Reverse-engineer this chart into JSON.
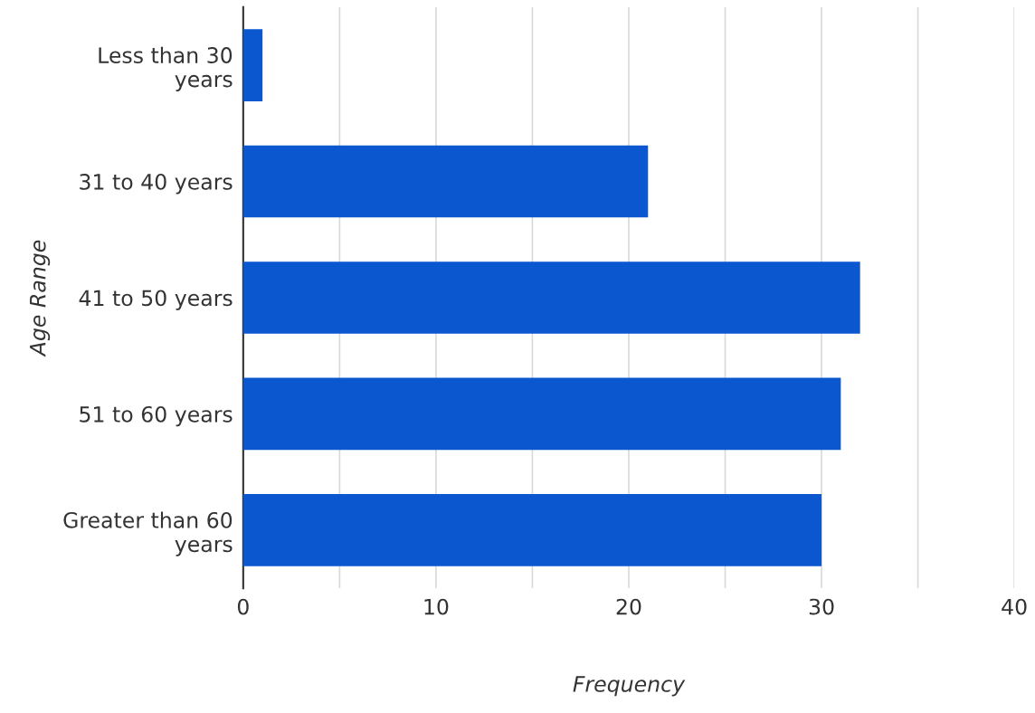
{
  "chart_data": {
    "type": "bar",
    "orientation": "horizontal",
    "xlabel": "Frequency",
    "ylabel": "Age Range",
    "categories": [
      "Less than 30\nyears",
      "31 to 40 years",
      "41 to 50 years",
      "51 to 60 years",
      "Greater than 60\nyears"
    ],
    "values": [
      1,
      21,
      32,
      31,
      30
    ],
    "color": "#0b57d0",
    "xlim": [
      0,
      40
    ],
    "xticks": [
      0,
      {
        "value": 5,
        "label": null
      },
      10,
      {
        "value": 15,
        "label": null
      },
      20,
      {
        "value": 25,
        "label": null
      },
      30,
      {
        "value": 35,
        "label": null
      },
      40
    ],
    "grid": "x",
    "legend": false
  }
}
